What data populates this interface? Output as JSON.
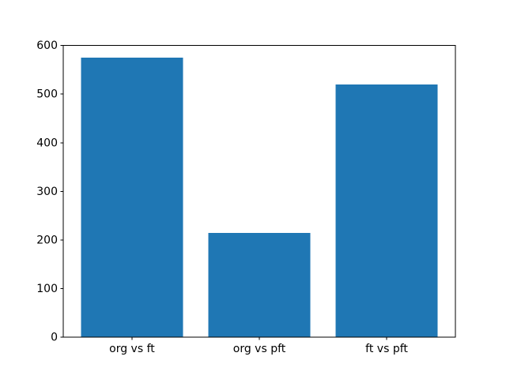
{
  "chart_data": {
    "type": "bar",
    "categories": [
      "org vs ft",
      "org vs pft",
      "ft vs pft"
    ],
    "values": [
      575,
      215,
      520
    ],
    "title": "",
    "xlabel": "",
    "ylabel": "",
    "ylim": [
      0,
      600
    ],
    "yticks": [
      0,
      100,
      200,
      300,
      400,
      500,
      600
    ],
    "bar_color": "#1f77b4",
    "figure_background": "#ffffff",
    "axes_background": "#ffffff",
    "spine_color": "#000000",
    "tick_label_color": "#000000",
    "grid": false,
    "legend": false,
    "bar_width_fraction": 0.8
  }
}
